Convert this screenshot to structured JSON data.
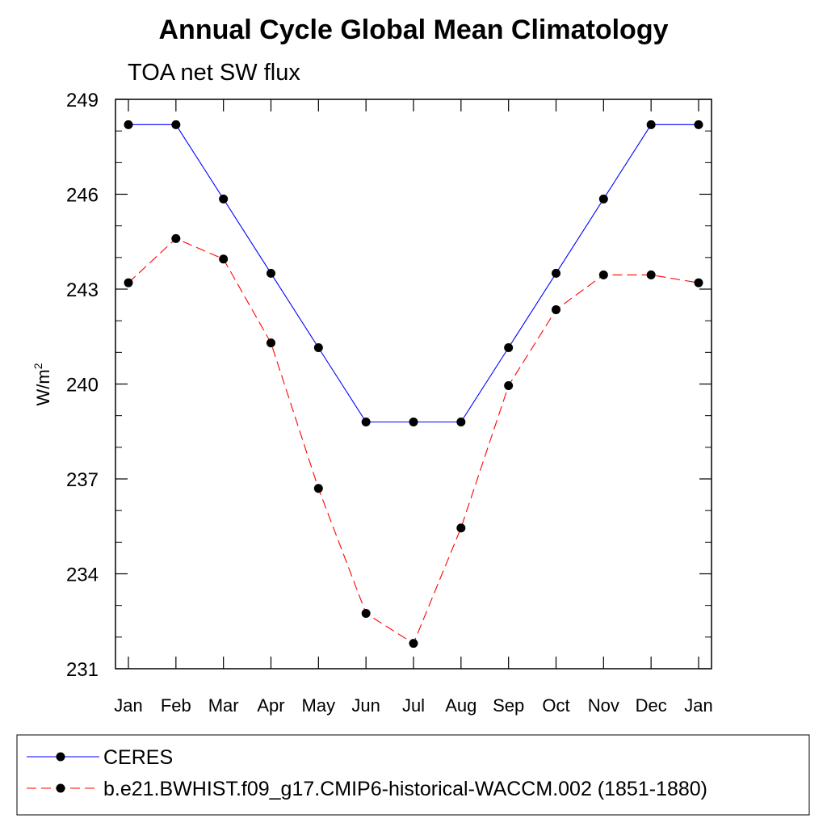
{
  "chart_data": {
    "type": "line",
    "title": "Annual Cycle Global Mean Climatology",
    "subtitle": "TOA net SW flux",
    "xlabel": "",
    "ylabel": "W/m",
    "ylabel_superscript": "2",
    "categories": [
      "Jan",
      "Feb",
      "Mar",
      "Apr",
      "May",
      "Jun",
      "Jul",
      "Aug",
      "Sep",
      "Oct",
      "Nov",
      "Dec",
      "Jan"
    ],
    "ylim": [
      231,
      249
    ],
    "yticks": [
      231,
      234,
      237,
      240,
      243,
      246,
      249
    ],
    "y_minor_step": 1,
    "grid": false,
    "legend_position": "bottom",
    "series": [
      {
        "name": "CERES",
        "color": "#0000ff",
        "dash": "solid",
        "marker": "filled-circle",
        "values": [
          248.2,
          248.2,
          245.85,
          243.5,
          241.15,
          238.8,
          238.8,
          238.8,
          241.15,
          243.5,
          245.85,
          248.2,
          248.2
        ]
      },
      {
        "name": "b.e21.BWHIST.f09_g17.CMIP6-historical-WACCM.002 (1851-1880)",
        "color": "#ff0000",
        "dash": "dashed",
        "marker": "filled-circle",
        "values": [
          243.2,
          244.6,
          243.95,
          241.3,
          236.7,
          232.75,
          231.8,
          235.45,
          239.95,
          242.35,
          243.45,
          243.45,
          243.2
        ]
      }
    ]
  }
}
